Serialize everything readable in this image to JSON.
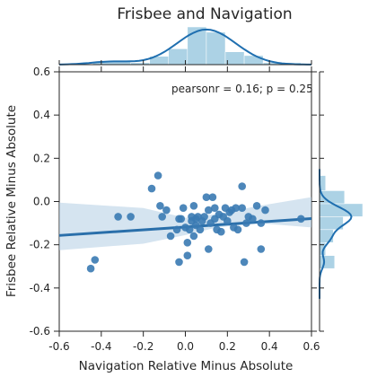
{
  "chart_data": {
    "type": "scatter",
    "title": "Frisbee and Navigation",
    "xlabel": "Navigation Relative Minus Absolute",
    "ylabel": "Frisbee Relative Minus Absolute",
    "xlim": [
      -0.6,
      0.6
    ],
    "ylim": [
      -0.6,
      0.6
    ],
    "xticks": [
      "-0.6",
      "-0.4",
      "-0.2",
      "0.0",
      "0.2",
      "0.4",
      "0.6"
    ],
    "yticks": [
      "-0.6",
      "-0.4",
      "-0.2",
      "0.0",
      "0.2",
      "0.4",
      "0.6"
    ],
    "annotation": "pearsonr = 0.16; p = 0.25",
    "regression": {
      "intercept": -0.118,
      "slope": 0.065,
      "ci_low_edge": [
        -0.6,
        -0.225
      ],
      "ci_high_edge": [
        -0.6,
        -0.005
      ],
      "ci_low_right": [
        0.6,
        -0.12
      ],
      "ci_high_right": [
        0.6,
        0.02
      ]
    },
    "colors": {
      "points": "#3a7ab2",
      "line": "#2a6faa",
      "band": "#b3cde3",
      "hist": "#9ecae1",
      "kde": "#1f6fb0"
    },
    "points": [
      [
        -0.45,
        -0.31
      ],
      [
        -0.43,
        -0.27
      ],
      [
        -0.32,
        -0.07
      ],
      [
        -0.26,
        -0.07
      ],
      [
        -0.16,
        0.06
      ],
      [
        -0.13,
        0.12
      ],
      [
        -0.12,
        -0.02
      ],
      [
        -0.11,
        -0.07
      ],
      [
        -0.09,
        -0.04
      ],
      [
        -0.07,
        -0.16
      ],
      [
        -0.04,
        -0.13
      ],
      [
        -0.03,
        -0.08
      ],
      [
        -0.03,
        -0.28
      ],
      [
        -0.02,
        -0.08
      ],
      [
        -0.01,
        -0.03
      ],
      [
        0.0,
        -0.12
      ],
      [
        0.01,
        -0.19
      ],
      [
        0.01,
        -0.25
      ],
      [
        0.02,
        -0.13
      ],
      [
        0.03,
        -0.07
      ],
      [
        0.03,
        -0.09
      ],
      [
        0.04,
        -0.02
      ],
      [
        0.04,
        -0.16
      ],
      [
        0.05,
        -0.08
      ],
      [
        0.05,
        -0.11
      ],
      [
        0.06,
        -0.07
      ],
      [
        0.07,
        -0.13
      ],
      [
        0.08,
        -0.09
      ],
      [
        0.09,
        -0.07
      ],
      [
        0.1,
        0.02
      ],
      [
        0.11,
        -0.22
      ],
      [
        0.11,
        -0.04
      ],
      [
        0.12,
        -0.1
      ],
      [
        0.13,
        0.02
      ],
      [
        0.14,
        -0.03
      ],
      [
        0.14,
        -0.08
      ],
      [
        0.15,
        -0.13
      ],
      [
        0.16,
        -0.06
      ],
      [
        0.17,
        -0.14
      ],
      [
        0.18,
        -0.07
      ],
      [
        0.19,
        -0.03
      ],
      [
        0.2,
        -0.09
      ],
      [
        0.21,
        -0.05
      ],
      [
        0.22,
        -0.04
      ],
      [
        0.23,
        -0.12
      ],
      [
        0.24,
        -0.03
      ],
      [
        0.25,
        -0.13
      ],
      [
        0.27,
        0.07
      ],
      [
        0.27,
        -0.03
      ],
      [
        0.28,
        -0.28
      ],
      [
        0.29,
        -0.1
      ],
      [
        0.3,
        -0.07
      ],
      [
        0.32,
        -0.08
      ],
      [
        0.34,
        -0.02
      ],
      [
        0.36,
        -0.22
      ],
      [
        0.36,
        -0.1
      ],
      [
        0.38,
        -0.04
      ],
      [
        0.55,
        -0.08
      ]
    ],
    "x_hist": {
      "bins": [
        [
          -0.44,
          -0.26,
          0.08
        ],
        [
          -0.26,
          -0.17,
          0.05
        ],
        [
          -0.17,
          -0.08,
          0.22
        ],
        [
          -0.08,
          0.01,
          0.42
        ],
        [
          0.01,
          0.1,
          1.0
        ],
        [
          0.1,
          0.19,
          0.86
        ],
        [
          0.19,
          0.28,
          0.34
        ],
        [
          0.28,
          0.37,
          0.24
        ],
        [
          0.37,
          0.55,
          0.05
        ]
      ]
    },
    "y_hist": {
      "bins": [
        [
          -0.31,
          -0.25,
          0.35
        ],
        [
          -0.25,
          -0.19,
          0.14
        ],
        [
          -0.19,
          -0.13,
          0.32
        ],
        [
          -0.13,
          -0.07,
          0.55
        ],
        [
          -0.07,
          -0.01,
          1.0
        ],
        [
          -0.01,
          0.05,
          0.58
        ],
        [
          0.05,
          0.12,
          0.14
        ]
      ]
    }
  }
}
